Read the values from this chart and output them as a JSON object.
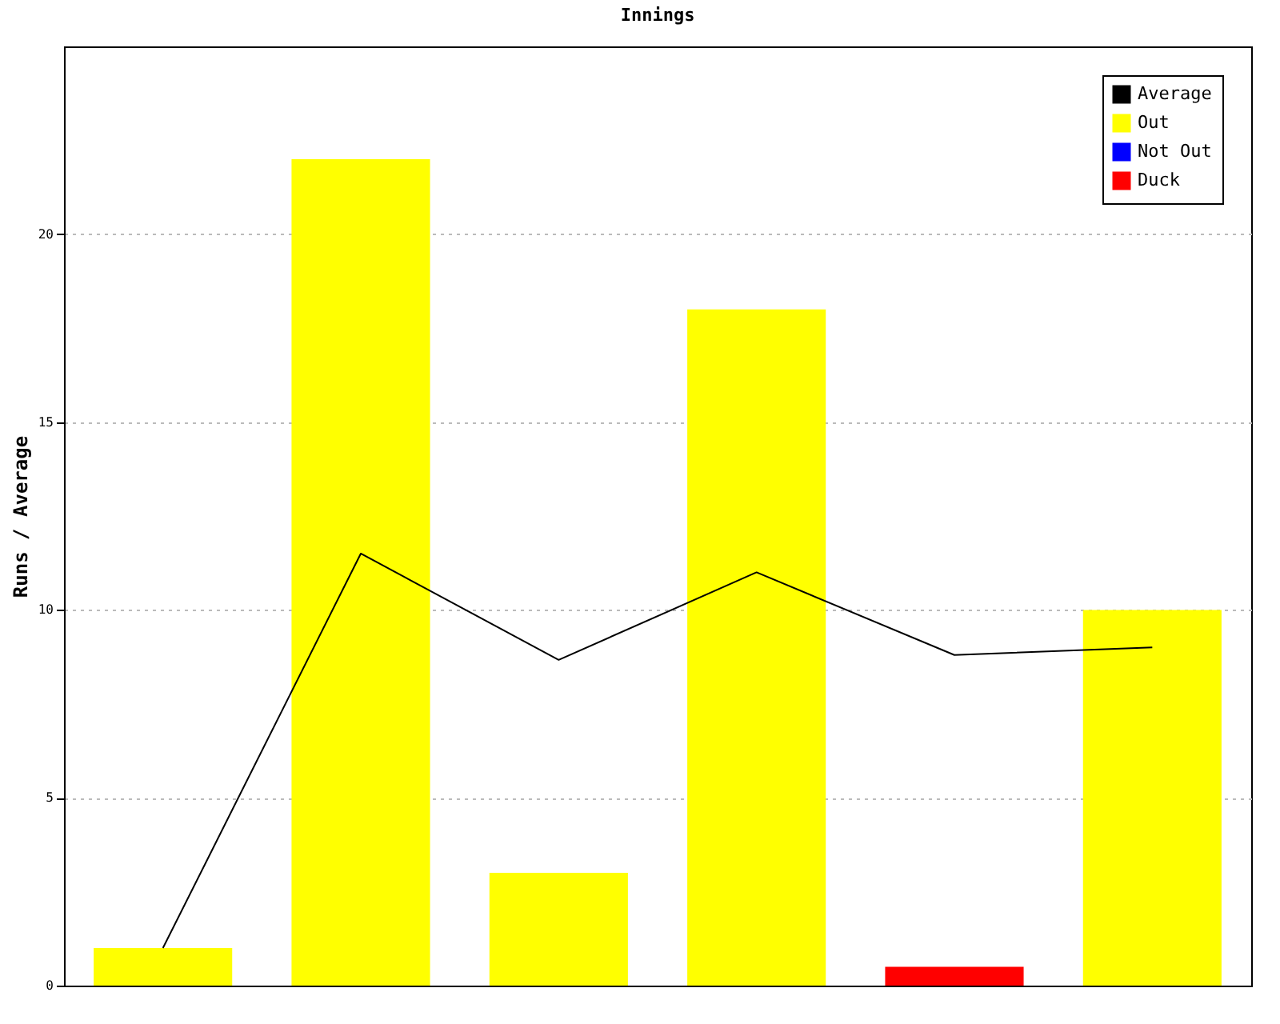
{
  "chart_data": {
    "type": "bar",
    "title": "Innings",
    "ylabel": "Runs / Average",
    "categories": [
      null,
      null,
      null,
      null,
      null,
      null
    ],
    "series": [
      {
        "name": "Average",
        "type": "line",
        "color": "#000000",
        "values": [
          1,
          11.5,
          8.67,
          11,
          8.8,
          9
        ]
      },
      {
        "name": "Out",
        "color": "#ffff00",
        "values": [
          1,
          22,
          3,
          18,
          null,
          10
        ]
      },
      {
        "name": "Not Out",
        "color": "#0000ff",
        "values": [
          null,
          null,
          null,
          null,
          null,
          null
        ]
      },
      {
        "name": "Duck",
        "color": "#ff0000",
        "values": [
          null,
          null,
          null,
          null,
          0.5,
          null
        ]
      }
    ],
    "ylim": [
      0,
      25
    ],
    "yticks": [
      0,
      5,
      10,
      15,
      20
    ],
    "grid": "y",
    "legend": "top right",
    "tick_labels": "y",
    "marker": "none",
    "line_style": "solid"
  }
}
